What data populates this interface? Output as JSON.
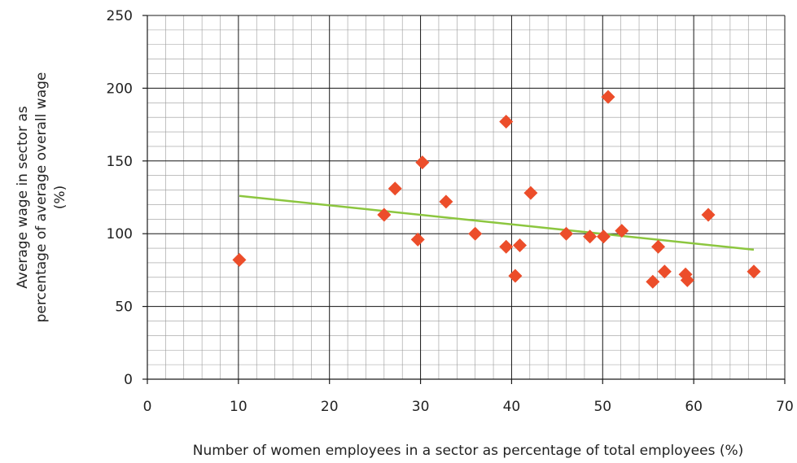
{
  "chart_data": {
    "type": "scatter",
    "xlabel": "Number of women employees in a sector as percentage of total employees (%)",
    "ylabel_lines": [
      "Average wage in sector as",
      "percentage of average overall wage",
      "(%)"
    ],
    "xlim": [
      0,
      70
    ],
    "ylim": [
      0,
      250
    ],
    "x_ticks": [
      0,
      10,
      20,
      30,
      40,
      50,
      60,
      70
    ],
    "y_ticks": [
      0,
      50,
      100,
      150,
      200,
      250
    ],
    "grid": true,
    "colors": {
      "points": "#ec4d2a",
      "trendline": "#8cc63f",
      "grid_major": "#1a1a1a",
      "grid_minor": "#9a9a9a"
    },
    "series": [
      {
        "marker": "diamond",
        "points": [
          {
            "x": 10.1,
            "y": 82
          },
          {
            "x": 26.0,
            "y": 113
          },
          {
            "x": 27.2,
            "y": 131
          },
          {
            "x": 29.7,
            "y": 96
          },
          {
            "x": 30.2,
            "y": 149
          },
          {
            "x": 32.8,
            "y": 122
          },
          {
            "x": 36.0,
            "y": 100
          },
          {
            "x": 39.4,
            "y": 177
          },
          {
            "x": 39.4,
            "y": 91
          },
          {
            "x": 40.4,
            "y": 71
          },
          {
            "x": 40.9,
            "y": 92
          },
          {
            "x": 42.1,
            "y": 128
          },
          {
            "x": 46.0,
            "y": 100
          },
          {
            "x": 48.6,
            "y": 98
          },
          {
            "x": 50.1,
            "y": 98
          },
          {
            "x": 50.6,
            "y": 194
          },
          {
            "x": 52.1,
            "y": 102
          },
          {
            "x": 55.5,
            "y": 67
          },
          {
            "x": 56.1,
            "y": 91
          },
          {
            "x": 56.8,
            "y": 74
          },
          {
            "x": 59.1,
            "y": 72
          },
          {
            "x": 59.3,
            "y": 68
          },
          {
            "x": 61.6,
            "y": 113
          },
          {
            "x": 66.6,
            "y": 74
          }
        ]
      }
    ],
    "trendline": {
      "type": "linear",
      "x": [
        10.1,
        66.6
      ],
      "y": [
        126,
        89
      ]
    }
  }
}
